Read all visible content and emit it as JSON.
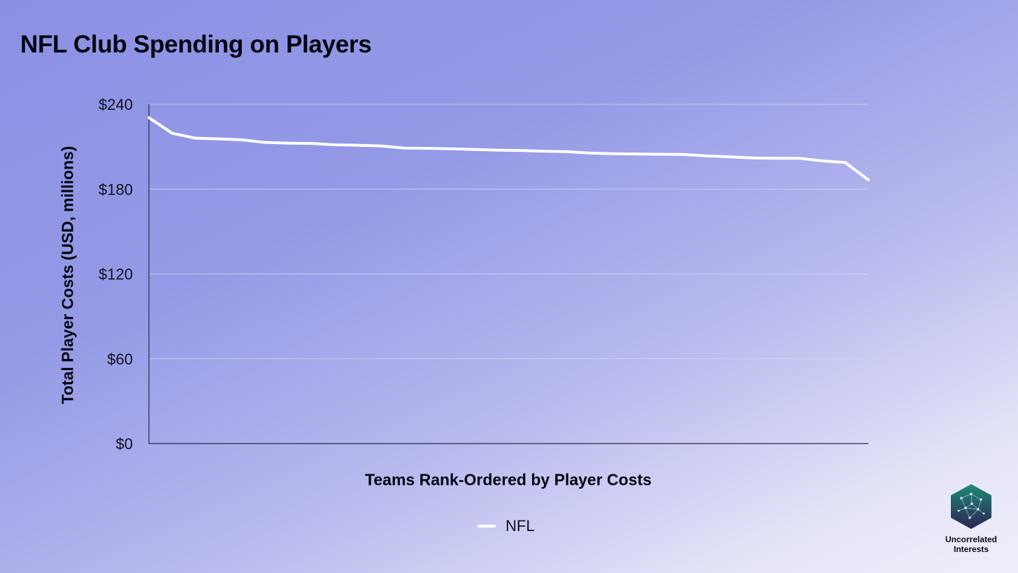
{
  "chart_data": {
    "type": "line",
    "title": "NFL Club Spending on Players",
    "xlabel": "Teams Rank-Ordered by Player Costs",
    "ylabel": "Total Player Costs (USD, millions)",
    "ylim": [
      0,
      240
    ],
    "yticks": [
      "$0",
      "$60",
      "$120",
      "$180",
      "$240"
    ],
    "ytick_values": [
      0,
      60,
      120,
      180,
      240
    ],
    "grid": true,
    "legend_position": "bottom",
    "x": [
      1,
      2,
      3,
      4,
      5,
      6,
      7,
      8,
      9,
      10,
      11,
      12,
      13,
      14,
      15,
      16,
      17,
      18,
      19,
      20,
      21,
      22,
      23,
      24,
      25,
      26,
      27,
      28,
      29,
      30,
      31,
      32
    ],
    "series": [
      {
        "name": "NFL",
        "color": "#ffffff",
        "values": [
          230.5,
          219.5,
          216.0,
          215.5,
          214.8,
          213.0,
          212.5,
          212.3,
          211.3,
          211.0,
          210.5,
          209.0,
          208.8,
          208.5,
          208.0,
          207.5,
          207.3,
          206.8,
          206.5,
          205.5,
          205.0,
          204.8,
          204.6,
          204.5,
          203.5,
          202.8,
          202.0,
          201.8,
          201.8,
          200.0,
          198.8,
          186.5
        ]
      }
    ]
  },
  "brand": {
    "name": "Uncorrelated Interests",
    "logo_icon": "network-hexagon-icon",
    "logo_colors": [
      "#1f8a7a",
      "#2b2350"
    ]
  }
}
